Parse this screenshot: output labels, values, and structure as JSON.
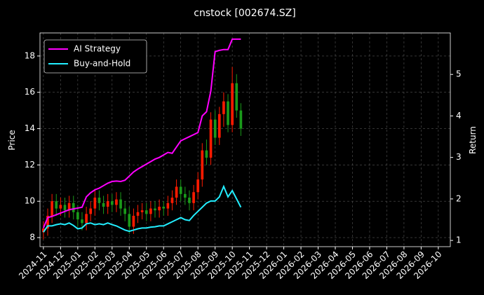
{
  "chart_data": {
    "type": "candlestick",
    "title": "cnstock [002674.SZ]",
    "ylabel": "Price",
    "y2label": "Return",
    "x": [
      0,
      0.25,
      0.5,
      0.75,
      1,
      1.25,
      1.5,
      1.75,
      2,
      2.25,
      2.5,
      2.75,
      3,
      3.25,
      3.5,
      3.75,
      4,
      4.25,
      4.5,
      4.75,
      5,
      5.25,
      5.5,
      5.75,
      6,
      6.25,
      6.5,
      6.75,
      7,
      7.25,
      7.5,
      7.75,
      8,
      8.25,
      8.5,
      8.75,
      9,
      9.25,
      9.5,
      9.75,
      10,
      10.25,
      10.5,
      10.75,
      11,
      11.25,
      11.5
    ],
    "open": [
      8.3,
      8.5,
      9.2,
      10.0,
      9.6,
      9.8,
      9.5,
      9.9,
      9.4,
      9.0,
      8.8,
      9.3,
      9.6,
      10.2,
      9.9,
      9.7,
      10.0,
      9.8,
      10.1,
      9.6,
      9.3,
      8.6,
      9.2,
      9.4,
      9.5,
      9.3,
      9.6,
      9.5,
      9.7,
      9.6,
      9.9,
      10.2,
      10.8,
      10.4,
      10.2,
      9.9,
      10.5,
      11.2,
      12.8,
      12.4,
      14.5,
      13.5,
      14.8,
      15.5,
      14.2,
      16.5,
      15.0
    ],
    "high": [
      8.9,
      9.6,
      10.4,
      10.4,
      10.2,
      10.2,
      10.3,
      10.3,
      9.8,
      9.4,
      9.7,
      10.0,
      10.6,
      10.6,
      10.3,
      10.4,
      10.4,
      10.5,
      10.5,
      10.0,
      9.7,
      9.6,
      9.8,
      9.9,
      9.9,
      10.0,
      10.0,
      10.1,
      10.0,
      10.3,
      10.6,
      11.2,
      11.2,
      10.8,
      10.6,
      10.9,
      11.6,
      13.2,
      13.4,
      14.9,
      15.0,
      15.2,
      16.0,
      15.9,
      17.4,
      17.0,
      15.4
    ],
    "low": [
      7.9,
      8.1,
      8.8,
      9.2,
      9.2,
      9.1,
      9.1,
      9.0,
      8.6,
      8.4,
      8.4,
      8.9,
      9.2,
      9.5,
      9.3,
      9.3,
      9.4,
      9.4,
      9.2,
      8.9,
      8.2,
      8.2,
      8.8,
      9.0,
      8.9,
      8.9,
      9.1,
      9.1,
      9.2,
      9.2,
      9.5,
      9.8,
      10.0,
      9.8,
      9.5,
      9.5,
      10.1,
      10.8,
      12.0,
      12.0,
      13.1,
      13.1,
      14.1,
      13.8,
      13.8,
      14.6,
      13.6
    ],
    "close": [
      8.5,
      9.2,
      10.0,
      9.6,
      9.8,
      9.5,
      9.9,
      9.4,
      9.0,
      8.8,
      9.3,
      9.6,
      10.2,
      9.9,
      9.7,
      10.0,
      9.8,
      10.1,
      9.6,
      9.3,
      8.6,
      9.2,
      9.4,
      9.5,
      9.3,
      9.6,
      9.5,
      9.7,
      9.6,
      9.9,
      10.2,
      10.8,
      10.4,
      10.2,
      9.9,
      10.5,
      11.2,
      12.8,
      12.4,
      14.5,
      13.5,
      14.8,
      15.5,
      14.2,
      16.5,
      15.0,
      14.0
    ],
    "up_color": "#ff1a00",
    "down_color": "#1a9a1a",
    "series": [
      {
        "name": "AI Strategy",
        "color": "#ff00ff",
        "axis": "y2",
        "values": [
          1.3,
          1.55,
          1.58,
          1.62,
          1.66,
          1.7,
          1.74,
          1.76,
          1.78,
          1.8,
          2.05,
          2.15,
          2.22,
          2.26,
          2.32,
          2.38,
          2.42,
          2.43,
          2.42,
          2.45,
          2.55,
          2.65,
          2.72,
          2.78,
          2.84,
          2.9,
          2.96,
          3.0,
          3.06,
          3.12,
          3.1,
          3.25,
          3.4,
          3.45,
          3.5,
          3.55,
          3.6,
          4.0,
          4.1,
          4.6,
          5.55,
          5.58,
          5.6,
          5.6,
          5.85,
          5.85,
          5.85
        ]
      },
      {
        "name": "Buy-and-Hold",
        "color": "#22eeff",
        "axis": "y2",
        "values": [
          1.2,
          1.35,
          1.35,
          1.38,
          1.4,
          1.38,
          1.42,
          1.36,
          1.28,
          1.3,
          1.4,
          1.42,
          1.38,
          1.4,
          1.38,
          1.42,
          1.38,
          1.35,
          1.3,
          1.25,
          1.22,
          1.25,
          1.28,
          1.3,
          1.3,
          1.32,
          1.33,
          1.35,
          1.35,
          1.4,
          1.45,
          1.5,
          1.55,
          1.5,
          1.48,
          1.6,
          1.7,
          1.8,
          1.9,
          1.95,
          1.95,
          2.05,
          2.3,
          2.05,
          2.2,
          2.0,
          1.8
        ]
      }
    ],
    "xlim": [
      -0.2,
      23.7
    ],
    "xticks": [
      {
        "value": 0,
        "label": "2024-11"
      },
      {
        "value": 1,
        "label": "2024-12"
      },
      {
        "value": 2,
        "label": "2025-01"
      },
      {
        "value": 3,
        "label": "2025-02"
      },
      {
        "value": 4,
        "label": "2025-03"
      },
      {
        "value": 5,
        "label": "2025-04"
      },
      {
        "value": 6,
        "label": "2025-05"
      },
      {
        "value": 7,
        "label": "2025-06"
      },
      {
        "value": 8,
        "label": "2025-07"
      },
      {
        "value": 9,
        "label": "2025-08"
      },
      {
        "value": 10,
        "label": "2025-09"
      },
      {
        "value": 11,
        "label": "2025-10"
      },
      {
        "value": 12,
        "label": "2025-11"
      },
      {
        "value": 13,
        "label": "2025-12"
      },
      {
        "value": 14,
        "label": "2026-01"
      },
      {
        "value": 15,
        "label": "2026-02"
      },
      {
        "value": 16,
        "label": "2026-03"
      },
      {
        "value": 17,
        "label": "2026-04"
      },
      {
        "value": 18,
        "label": "2026-05"
      },
      {
        "value": 19,
        "label": "2026-06"
      },
      {
        "value": 20,
        "label": "2026-07"
      },
      {
        "value": 21,
        "label": "2026-08"
      },
      {
        "value": 22,
        "label": "2026-09"
      },
      {
        "value": 23,
        "label": "2026-10"
      }
    ],
    "ylim": [
      7.5,
      19.27
    ],
    "yticks": [
      8,
      10,
      12,
      14,
      16,
      18
    ],
    "y2lim": [
      0.85,
      6.0
    ],
    "y2ticks": [
      1,
      2,
      3,
      4,
      5
    ],
    "grid": true,
    "legend": "upper left"
  }
}
